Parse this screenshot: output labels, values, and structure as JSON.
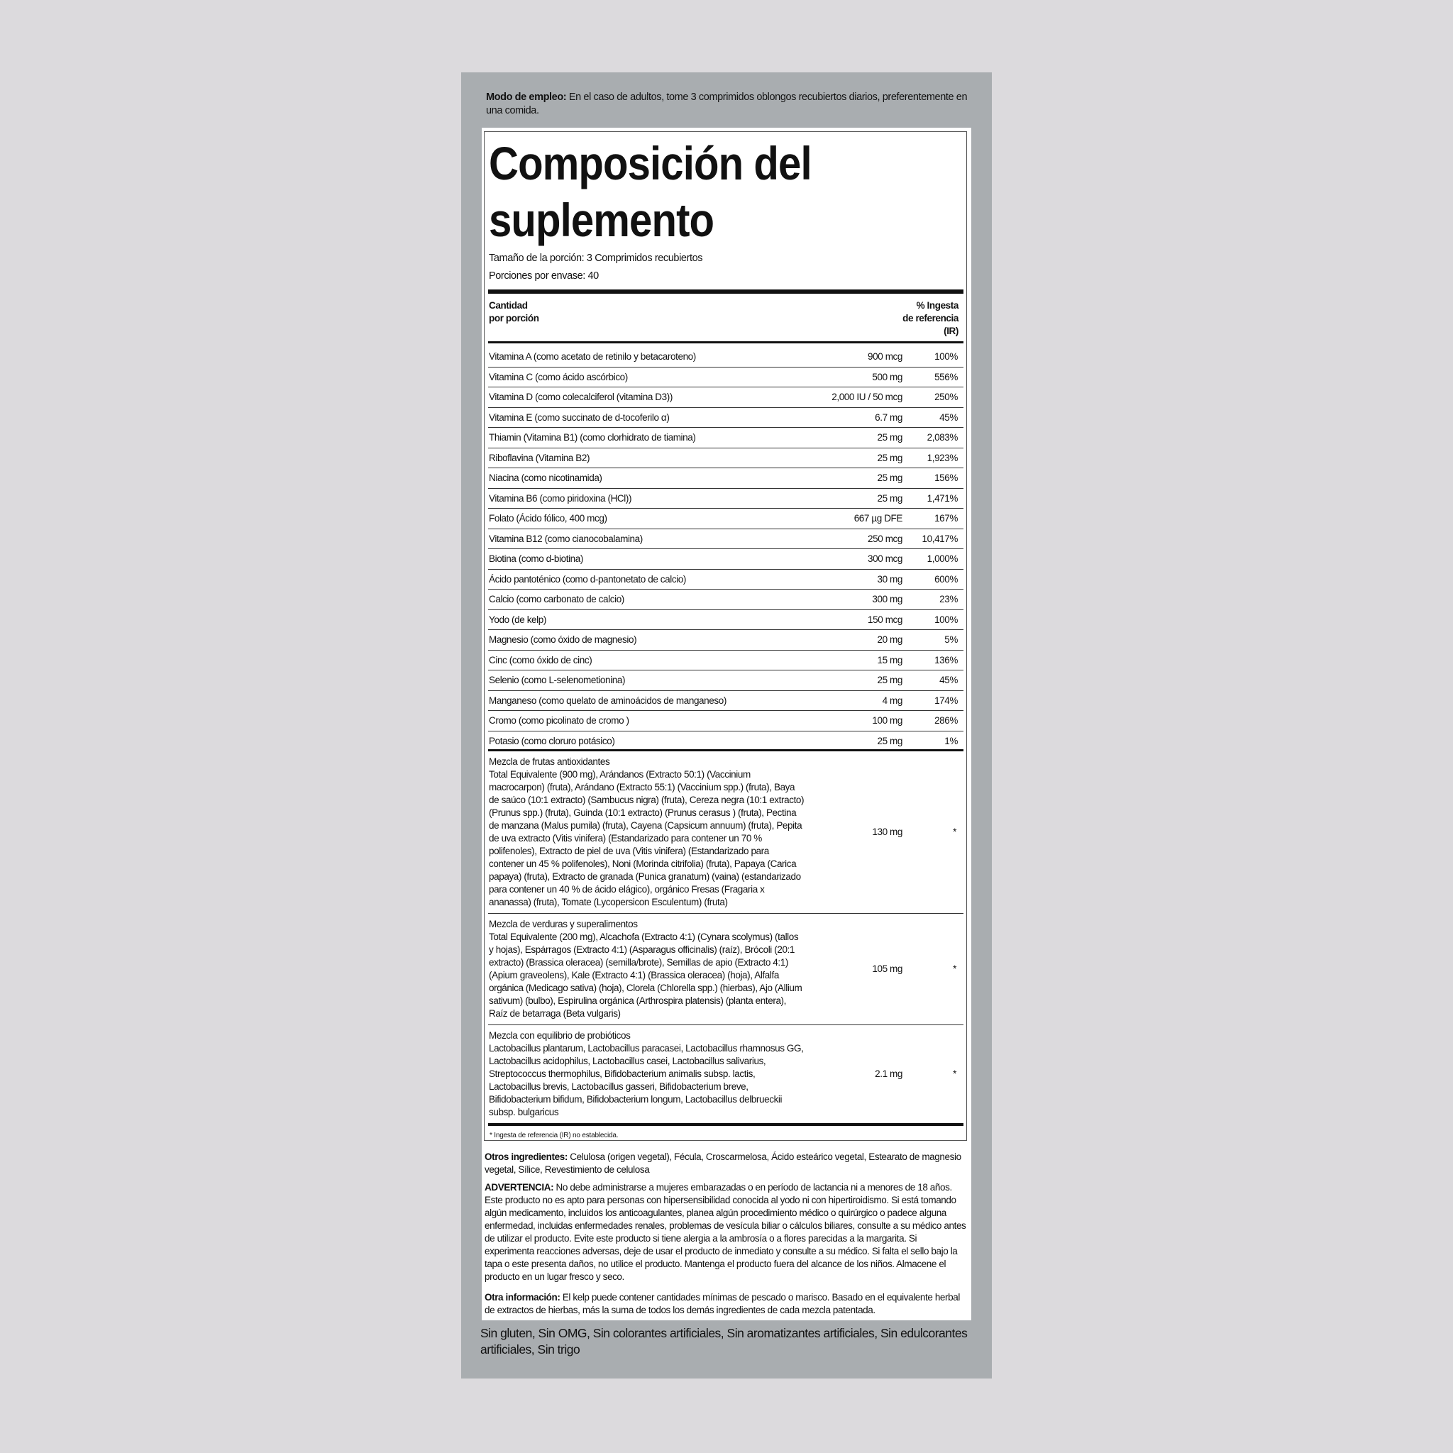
{
  "directions": {
    "label": "Modo de empleo:",
    "text": " En el caso de adultos, tome 3 comprimidos oblongos recubiertos diarios, preferentemente en una comida."
  },
  "facts": {
    "title_line1": "Composición del",
    "title_line2": "suplemento",
    "serving_size": "Tamaño de la porción: 3 Comprimidos recubiertos",
    "servings": "Porciones por envase: 40",
    "header_left_1": "Cantidad",
    "header_left_2": "por porción",
    "header_right_1": "% Ingesta",
    "header_right_2": "de referencia",
    "header_right_3": "(IR)",
    "rows": [
      {
        "name": "Vitamina A (como acetato de retinilo y betacaroteno)",
        "amount": "900 mcg",
        "pct": "100%"
      },
      {
        "name": "Vitamina C (como ácido ascórbico)",
        "amount": "500 mg",
        "pct": "556%"
      },
      {
        "name": "Vitamina D (como colecalciferol (vitamina D3))",
        "amount": "2,000 IU / 50 mcg",
        "pct": "250%"
      },
      {
        "name": "Vitamina E (como succinato de d-tocoferilo α)",
        "amount": "6.7 mg",
        "pct": "45%"
      },
      {
        "name": "Thiamin (Vitamina B1) (como clorhidrato de tiamina)",
        "amount": "25 mg",
        "pct": "2,083%"
      },
      {
        "name": "Riboflavina (Vitamina B2)",
        "amount": "25 mg",
        "pct": "1,923%"
      },
      {
        "name": "Niacina (como nicotinamida)",
        "amount": "25 mg",
        "pct": "156%"
      },
      {
        "name": "Vitamina B6 (como piridoxina (HCl))",
        "amount": "25 mg",
        "pct": "1,471%"
      },
      {
        "name": "Folato (Ácido fólico, 400 mcg)",
        "amount": "667 µg DFE",
        "pct": "167%"
      },
      {
        "name": "Vitamina B12 (como cianocobalamina)",
        "amount": "250 mcg",
        "pct": "10,417%"
      },
      {
        "name": "Biotina (como d-biotina)",
        "amount": "300 mcg",
        "pct": "1,000%"
      },
      {
        "name": "Ácido pantoténico (como d-pantonetato de calcio)",
        "amount": "30 mg",
        "pct": "600%"
      },
      {
        "name": "Calcio (como carbonato de calcio)",
        "amount": "300 mg",
        "pct": "23%"
      },
      {
        "name": "Yodo (de kelp)",
        "amount": "150 mcg",
        "pct": "100%"
      },
      {
        "name": "Magnesio (como óxido de magnesio)",
        "amount": "20 mg",
        "pct": "5%"
      },
      {
        "name": "Cinc (como óxido de cinc)",
        "amount": "15 mg",
        "pct": "136%"
      },
      {
        "name": "Selenio (como L-selenometionina)",
        "amount": "25 mg",
        "pct": "45%"
      },
      {
        "name": "Manganeso (como quelato de aminoácidos de manganeso)",
        "amount": "4 mg",
        "pct": "174%"
      },
      {
        "name": "Cromo (como picolinato de cromo )",
        "amount": "100 mg",
        "pct": "286%"
      },
      {
        "name": "Potasio (como cloruro potásico)",
        "amount": "25 mg",
        "pct": "1%"
      }
    ],
    "blends": [
      {
        "title": "Mezcla de frutas antioxidantes",
        "text": "Total Equivalente (900 mg), Arándanos (Extracto 50:1) (Vaccinium macrocarpon) (fruta), Arándano (Extracto 55:1) (Vaccinium spp.) (fruta), Baya de saúco (10:1 extracto) (Sambucus nigra) (fruta), Cereza negra (10:1 extracto) (Prunus spp.) (fruta), Guinda (10:1 extracto) (Prunus cerasus ) (fruta), Pectina de manzana (Malus pumila) (fruta), Cayena (Capsicum annuum) (fruta), Pepita de uva extracto (Vitis vinifera) (Estandarizado para contener un 70 % polifenoles), Extracto de piel de uva (Vitis vinifera) (Estandarizado para contener un 45 % polifenoles), Noni (Morinda citrifolia) (fruta), Papaya (Carica papaya) (fruta), Extracto de granada (Punica granatum) (vaina) (estandarizado para contener un 40 % de ácido elágico), orgánico Fresas (Fragaria x ananassa) (fruta), Tomate (Lycopersicon Esculentum) (fruta)",
        "amount": "130 mg",
        "pct": "*"
      },
      {
        "title": "Mezcla de verduras y superalimentos",
        "text": "Total Equivalente (200 mg), Alcachofa (Extracto 4:1) (Cynara scolymus) (tallos y hojas), Espárragos (Extracto 4:1) (Asparagus officinalis) (raíz), Brócoli (20:1 extracto) (Brassica oleracea) (semilla/brote), Semillas de apio (Extracto 4:1) (Apium graveolens), Kale (Extracto 4:1) (Brassica oleracea) (hoja), Alfalfa orgánica (Medicago sativa) (hoja), Clorela (Chlorella spp.) (hierbas), Ajo (Allium sativum) (bulbo), Espirulina orgánica (Arthrospira platensis) (planta entera), Raíz de betarraga (Beta vulgaris)",
        "amount": "105 mg",
        "pct": "*"
      },
      {
        "title": "Mezcla con equilibrio de probióticos",
        "text": "Lactobacillus plantarum, Lactobacillus paracasei, Lactobacillus rhamnosus GG, Lactobacillus acidophilus, Lactobacillus casei, Lactobacillus salivarius, Streptococcus thermophilus, Bifidobacterium animalis subsp. lactis, Lactobacillus brevis, Lactobacillus gasseri, Bifidobacterium breve, Bifidobacterium bifidum, Bifidobacterium longum, Lactobacillus delbrueckii subsp. bulgaricus",
        "amount": "2.1 mg",
        "pct": "*"
      }
    ],
    "footnote": "* Ingesta de referencia (IR) no establecida."
  },
  "other_ingredients": {
    "label": "Otros ingredientes:",
    "text": " Celulosa (origen vegetal), Fécula, Croscarmelosa, Ácido esteárico vegetal, Estearato de magnesio vegetal, Sílice, Revestimiento de celulosa"
  },
  "warning": {
    "label": "ADVERTENCIA:",
    "text": " No debe administrarse a mujeres embarazadas o en período de lactancia ni a menores de 18 años. Este producto no es apto para personas con hipersensibilidad conocida al yodo ni con hipertiroidismo. Si está tomando algún medicamento, incluidos los anticoagulantes, planea algún procedimiento médico o quirúrgico o padece alguna enfermedad, incluidas enfermedades renales, problemas de vesícula biliar o cálculos biliares, consulte a su médico antes de utilizar el producto. Evite este producto si tiene alergia a la ambrosía o a flores parecidas a la margarita. Si experimenta reacciones adversas, deje de usar el producto de inmediato y consulte a su médico. Si falta el sello bajo la tapa o este presenta daños, no utilice el producto. Mantenga el producto fuera del alcance de los niños. Almacene el producto en un lugar fresco y seco."
  },
  "other_info": {
    "label": "Otra información:",
    "text": " El kelp puede contener cantidades mínimas de pescado o marisco. Basado en el equivalente herbal de extractos de hierbas, más la suma de todos los demás ingredientes de cada mezcla patentada."
  },
  "claims": "Sin gluten, Sin OMG, Sin colorantes artificiales, Sin aromatizantes artificiales, Sin edulcorantes artificiales, Sin trigo",
  "colors": {
    "background": "#dcdadd",
    "panel": "#a9adb0",
    "label": "#ffffff",
    "text": "#111111"
  }
}
